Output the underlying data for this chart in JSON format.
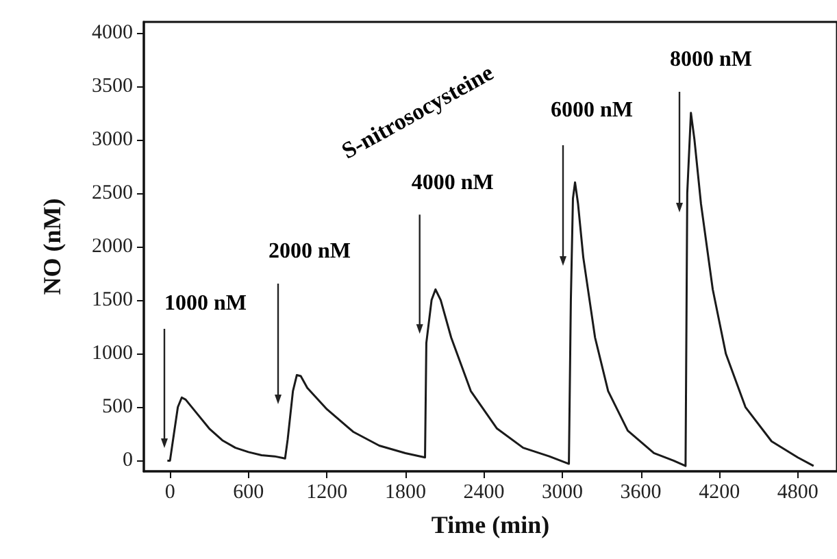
{
  "chart_data": {
    "type": "line",
    "xlabel": "Time (min)",
    "ylabel": "NO (nM)",
    "xlim": [
      -200,
      5100
    ],
    "xticks": [
      0,
      600,
      1200,
      1800,
      2400,
      3000,
      3600,
      4200,
      4800
    ],
    "ylim": [
      -100,
      4100
    ],
    "yticks": [
      0,
      500,
      1000,
      1500,
      2000,
      2500,
      3000,
      3500,
      4000
    ],
    "grid": false,
    "marker": "none",
    "line_style": "solid",
    "series": [
      {
        "color": "#1a1a1a",
        "x": [
          -20,
          0,
          30,
          60,
          90,
          120,
          200,
          300,
          400,
          500,
          600,
          700,
          800,
          880,
          900,
          940,
          970,
          1000,
          1050,
          1200,
          1400,
          1600,
          1800,
          1950,
          1960,
          2000,
          2030,
          2070,
          2150,
          2300,
          2500,
          2700,
          2900,
          3050,
          3065,
          3081,
          3097,
          3120,
          3160,
          3250,
          3350,
          3500,
          3700,
          3850,
          3942,
          3955,
          3983,
          4010,
          4060,
          4150,
          4250,
          4400,
          4600,
          4800,
          4921
        ],
        "values": [
          0,
          0,
          250,
          500,
          590,
          570,
          450,
          300,
          190,
          120,
          80,
          50,
          40,
          20,
          200,
          650,
          800,
          790,
          680,
          480,
          270,
          140,
          70,
          30,
          1100,
          1500,
          1600,
          1500,
          1150,
          650,
          300,
          120,
          40,
          -30,
          1500,
          2450,
          2600,
          2400,
          1900,
          1150,
          650,
          280,
          70,
          0,
          -50,
          2500,
          3250,
          3000,
          2400,
          1600,
          1000,
          500,
          180,
          30,
          -50
        ]
      }
    ],
    "annotations": [
      "S-nitrosocysteine",
      "1000 nM",
      "2000 nM",
      {
        "text": "4000 nM",
        "x": 1909,
        "y": 1185
      },
      "6000 nM",
      "8000 nM"
    ]
  }
}
